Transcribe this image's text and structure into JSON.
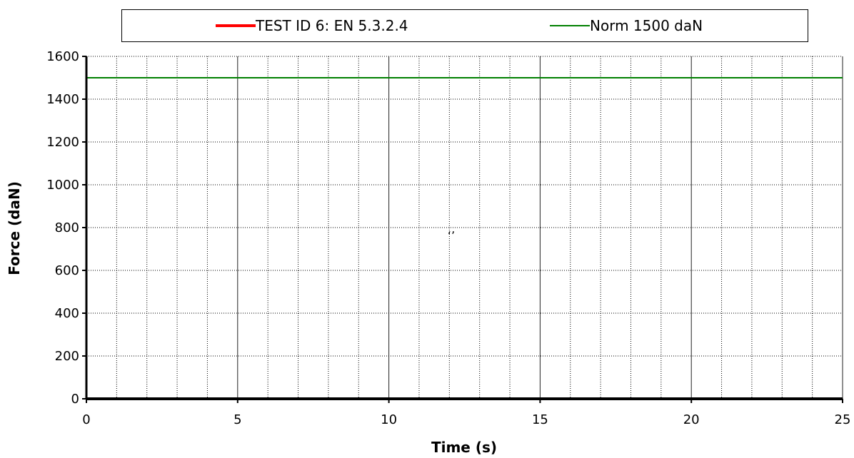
{
  "chart_data": {
    "type": "line",
    "title": "",
    "xlabel": "Time (s)",
    "ylabel": "Force (daN)",
    "xlim": [
      0,
      25
    ],
    "ylim": [
      0,
      1600
    ],
    "x_major_ticks": [
      0,
      5,
      10,
      15,
      20,
      25
    ],
    "x_minor_step": 1,
    "y_ticks": [
      0,
      200,
      400,
      600,
      800,
      1000,
      1200,
      1400,
      1600
    ],
    "grid": true,
    "legend_position": "top",
    "series": [
      {
        "name": "TEST ID 6: EN 5.3.2.4",
        "color": "#ff0000",
        "x": [
          0,
          25
        ],
        "y": [
          0,
          0
        ]
      },
      {
        "name": "Norm 1500 daN",
        "color": "#008000",
        "x": [
          0,
          25
        ],
        "y": [
          1500,
          1500
        ]
      }
    ],
    "annotations": [
      "ʻʼ"
    ]
  }
}
